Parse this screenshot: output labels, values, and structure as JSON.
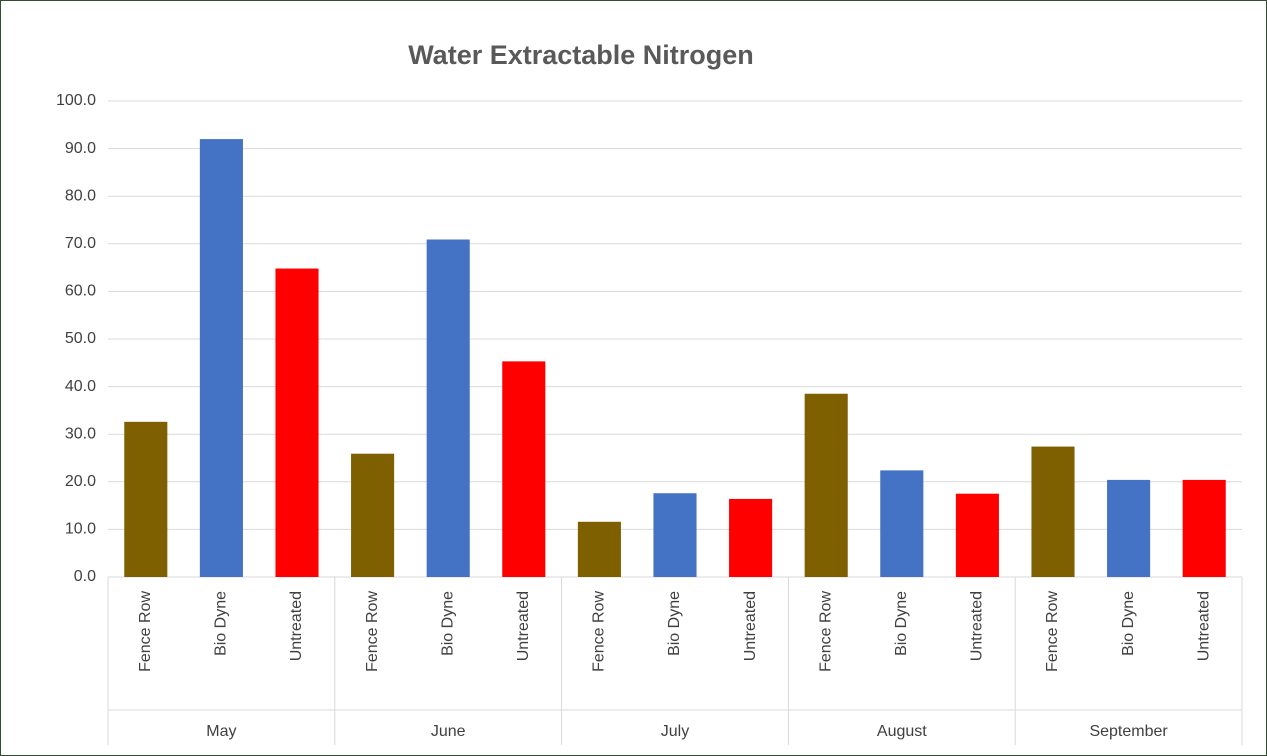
{
  "chart_data": {
    "type": "bar",
    "title": "Water Extractable Nitrogen",
    "categories": [
      "May",
      "June",
      "July",
      "August",
      "September"
    ],
    "series": [
      {
        "name": "Fence Row",
        "color": "#7f6000",
        "values": [
          32.6,
          25.9,
          11.6,
          38.5,
          27.4
        ]
      },
      {
        "name": "Bio Dyne",
        "color": "#4472c4",
        "values": [
          92.0,
          70.9,
          17.6,
          22.4,
          20.4
        ]
      },
      {
        "name": "Untreated",
        "color": "#ff0000",
        "values": [
          64.8,
          45.3,
          16.4,
          17.5,
          20.4
        ]
      }
    ],
    "ylim": [
      0,
      100
    ],
    "yticks": [
      {
        "value": 0,
        "label": "0.0"
      },
      {
        "value": 10,
        "label": "10.0"
      },
      {
        "value": 20,
        "label": "20.0"
      },
      {
        "value": 30,
        "label": "30.0"
      },
      {
        "value": 40,
        "label": "40.0"
      },
      {
        "value": 50,
        "label": "50.0"
      },
      {
        "value": 60,
        "label": "60.0"
      },
      {
        "value": 70,
        "label": "70.0"
      },
      {
        "value": 80,
        "label": "80.0"
      },
      {
        "value": 90,
        "label": "90.0"
      },
      {
        "value": 100,
        "label": "100.0"
      }
    ],
    "grid": true
  }
}
